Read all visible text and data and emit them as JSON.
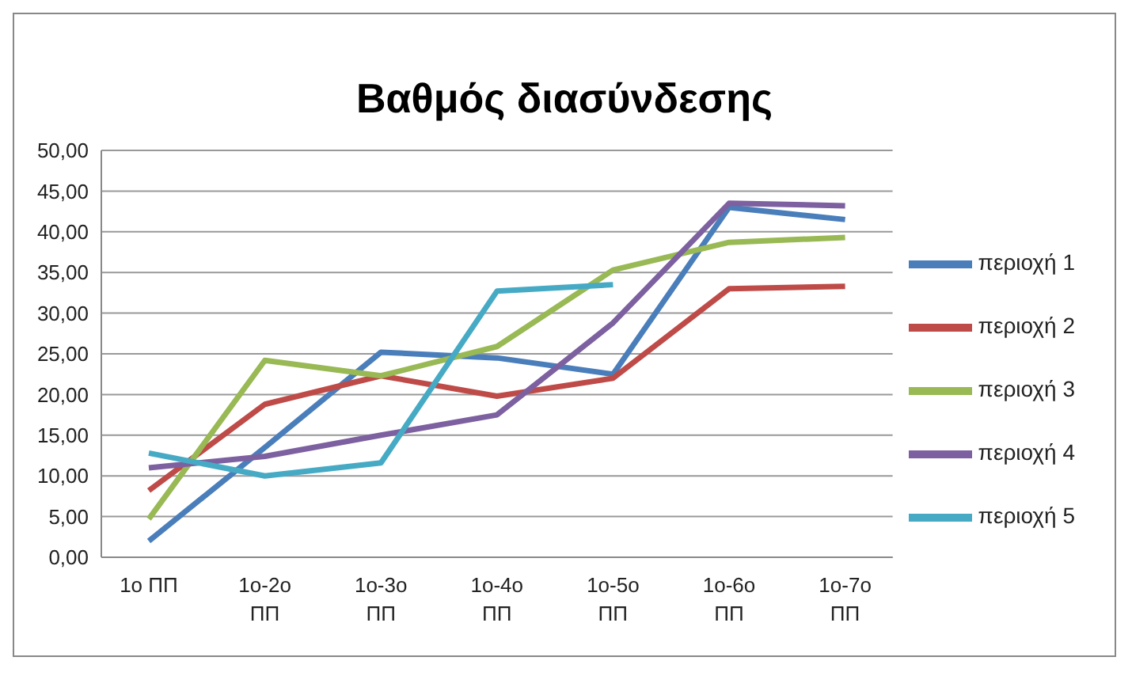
{
  "chart_data": {
    "type": "line",
    "title": "Βαθμός διασύνδεσης",
    "categories": [
      "1ο ΠΠ",
      "1ο-2ο ΠΠ",
      "1ο-3ο ΠΠ",
      "1ο-4ο ΠΠ",
      "1ο-5ο ΠΠ",
      "1ο-6ο ΠΠ",
      "1ο-7ο ΠΠ"
    ],
    "series": [
      {
        "name": "περιοχή 1",
        "color": "#4a7ebb",
        "values": [
          2,
          13.5,
          25.2,
          24.5,
          22.5,
          43,
          41.5
        ]
      },
      {
        "name": "περιοχή 2",
        "color": "#be4b48",
        "values": [
          8.2,
          18.8,
          22.3,
          19.8,
          22,
          33,
          33.3
        ]
      },
      {
        "name": "περιοχή 3",
        "color": "#98b954",
        "values": [
          4.7,
          24.2,
          22.3,
          25.9,
          35.3,
          38.7,
          39.3
        ]
      },
      {
        "name": "περιοχή 4",
        "color": "#7d60a0",
        "values": [
          11,
          12.4,
          15,
          17.5,
          28.8,
          43.5,
          43.2
        ]
      },
      {
        "name": "περιοχή 5",
        "color": "#46aac5",
        "values": [
          12.8,
          10,
          11.6,
          32.7,
          33.5,
          null,
          null
        ]
      }
    ],
    "ylim": [
      0,
      50
    ],
    "yticks": [
      {
        "value": 0,
        "label": "0,00"
      },
      {
        "value": 5,
        "label": "5,00"
      },
      {
        "value": 10,
        "label": "10,00"
      },
      {
        "value": 15,
        "label": "15,00"
      },
      {
        "value": 20,
        "label": "20,00"
      },
      {
        "value": 25,
        "label": "25,00"
      },
      {
        "value": 30,
        "label": "30,00"
      },
      {
        "value": 35,
        "label": "35,00"
      },
      {
        "value": 40,
        "label": "40,00"
      },
      {
        "value": 45,
        "label": "45,00"
      },
      {
        "value": 50,
        "label": "50,00"
      }
    ],
    "grid": "y",
    "legend": "right",
    "marker": "none",
    "line_style": "solid"
  }
}
